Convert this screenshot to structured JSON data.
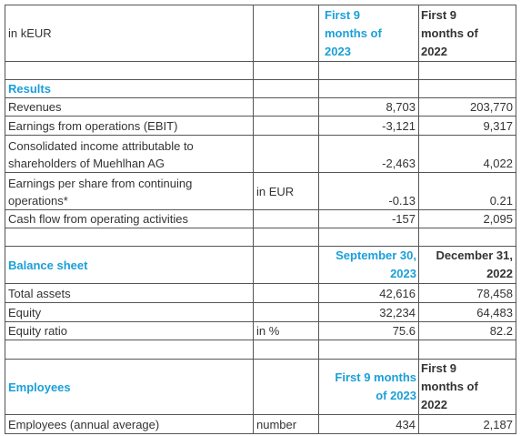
{
  "table": {
    "rows": [
      [
        "in kEUR",
        null,
        "First 9 months of 2023",
        "First 9 months of 2022"
      ],
      [
        null,
        null,
        null,
        null
      ],
      [
        "Results",
        null,
        null,
        null
      ],
      [
        "Revenues",
        null,
        "8,703",
        "203,770"
      ],
      [
        "Earnings from operations (EBIT)",
        null,
        "-3,121",
        "9,317"
      ],
      [
        "Consolidated income attributable to shareholders of Muehlhan AG",
        null,
        "-2,463",
        "4,022"
      ],
      [
        "Earnings per share from continuing operations*",
        "in EUR",
        "-0.13",
        "0.21"
      ],
      [
        "Cash flow from operating activities",
        null,
        "-157",
        "2,095"
      ],
      [
        null,
        null,
        null,
        null
      ],
      [
        "Balance sheet",
        null,
        "September 30, 2023",
        "December 31, 2022"
      ],
      [
        "Total assets",
        null,
        "42,616",
        "78,458"
      ],
      [
        "Equity",
        null,
        "32,234",
        "64,483"
      ],
      [
        "Equity ratio",
        "in %",
        "75.6",
        "82.2"
      ],
      [
        null,
        null,
        null,
        null
      ],
      [
        "Employees",
        null,
        "First 9 months of 2023",
        "First 9 months of 2022"
      ],
      [
        "Employees (annual average)",
        "number",
        "434",
        "2,187"
      ]
    ]
  }
}
